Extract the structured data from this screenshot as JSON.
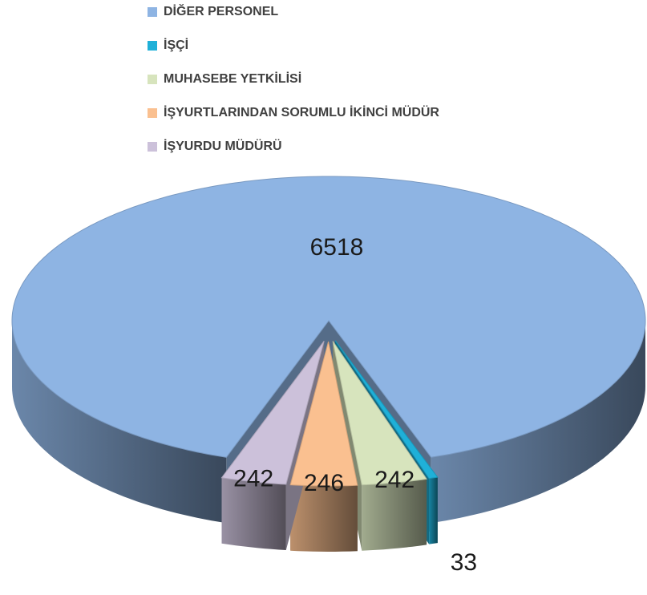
{
  "chart_data": {
    "type": "pie",
    "categories": [
      "DİĞER PERSONEL",
      "İŞÇİ",
      "MUHASEBE YETKİLİSİ",
      "İŞYURTLARINDAN SORUMLU İKİNCİ MÜDÜR",
      "İŞYURDU MÜDÜRÜ"
    ],
    "values": [
      6518,
      33,
      242,
      246,
      242
    ],
    "colors": [
      "#8eb4e3",
      "#1fb0d8",
      "#d7e4bd",
      "#fac090",
      "#ccc1da"
    ],
    "legend": "top"
  }
}
